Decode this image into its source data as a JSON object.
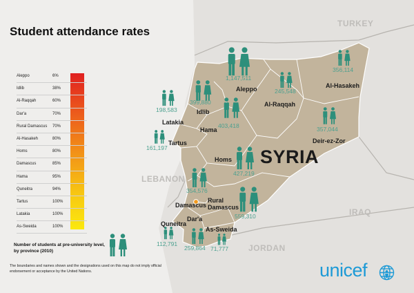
{
  "title": "Student attendance rates",
  "legend": {
    "rows": [
      {
        "province": "Aleppo",
        "rate": "6%"
      },
      {
        "province": "Idlib",
        "rate": "38%"
      },
      {
        "province": "Al-Raqqah",
        "rate": "60%"
      },
      {
        "province": "Dar'a",
        "rate": "70%"
      },
      {
        "province": "Rural Damascus",
        "rate": "70%"
      },
      {
        "province": "Al-Hasakeh",
        "rate": "80%"
      },
      {
        "province": "Homs",
        "rate": "80%"
      },
      {
        "province": "Damascus",
        "rate": "85%"
      },
      {
        "province": "Hama",
        "rate": "95%"
      },
      {
        "province": "Quneitra",
        "rate": "94%"
      },
      {
        "province": "Tartus",
        "rate": "100%"
      },
      {
        "province": "Latakia",
        "rate": "100%"
      },
      {
        "province": "As-Sweida",
        "rate": "100%"
      }
    ],
    "gradient_colors": [
      "#e02020",
      "#f39a17",
      "#fbe80f"
    ],
    "caption": "Number of students at pre-university level, by province (2010)"
  },
  "disclaimer": "The boundaries and names shown and the designations used on this map do not imply official endorsement or acceptance by the United Nations.",
  "countries": {
    "turkey": "TURKEY",
    "lebanon": "LEBANON",
    "iraq": "IRAQ",
    "jordan": "JORDAN",
    "syria": "SYRIA"
  },
  "provinces": {
    "aleppo": {
      "name": "Aleppo",
      "students": "1,147,511"
    },
    "idlib": {
      "name": "Idlib",
      "students": "399,880"
    },
    "alraqqah": {
      "name": "Al-Raqqah",
      "students": "245,548"
    },
    "alhasakeh": {
      "name": "Al-Hasakeh",
      "students": "356,114"
    },
    "latakia": {
      "name": "Latakia",
      "students": "198,583"
    },
    "hama": {
      "name": "Hama",
      "students": "403,418"
    },
    "tartus": {
      "name": "Tartus",
      "students": "161,197"
    },
    "deirezzor": {
      "name": "Deir-ez-Zor",
      "students": "357,044"
    },
    "homs": {
      "name": "Homs",
      "students": "427,219"
    },
    "damascus": {
      "name": "Damascus",
      "students": "354,576"
    },
    "ruraldamascus": {
      "name": "Rural Damascus",
      "students": "559,310"
    },
    "quneitra": {
      "name": "Quneitra",
      "students": "112,791"
    },
    "dara": {
      "name": "Dar'a",
      "students": "259,864"
    },
    "assweida": {
      "name": "As-Sweida",
      "students": "71,777"
    }
  },
  "brand": "unicef",
  "colors": {
    "syria_fill": "#c2b49c",
    "person_teal": "#2d8f7b",
    "number_teal": "#4ca08f",
    "unicef_blue": "#1d9ad6",
    "capital_dot": "#f29a1d"
  },
  "icons": [
    "person-icon",
    "unicef-globe-icon"
  ]
}
